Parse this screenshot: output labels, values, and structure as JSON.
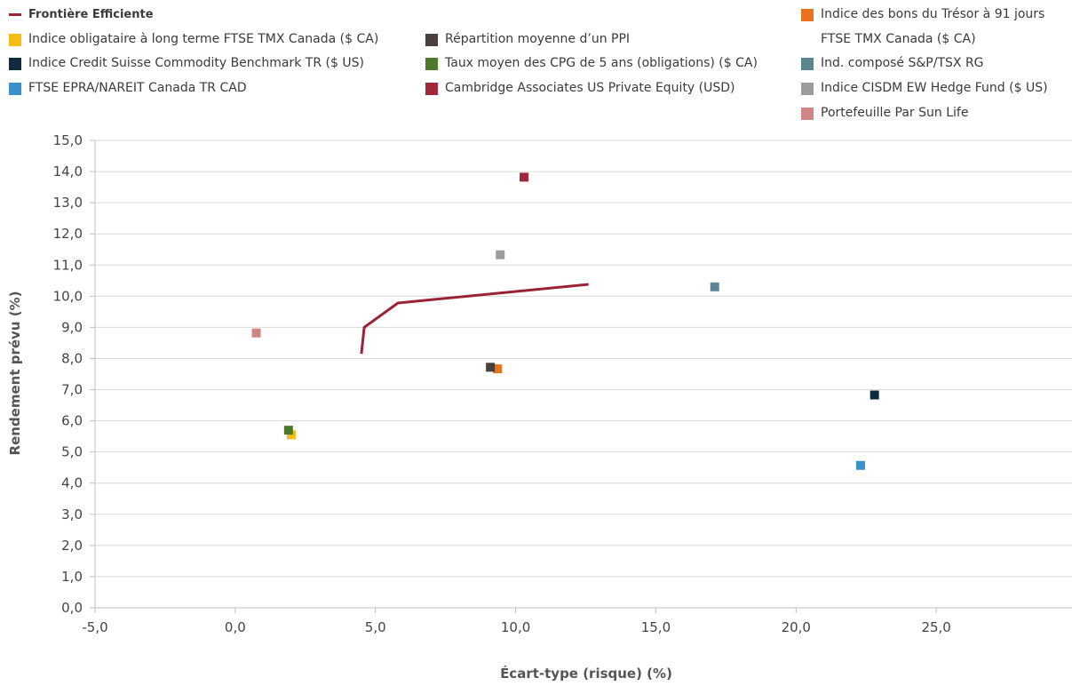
{
  "chart_data": {
    "type": "scatter",
    "xlabel": "Écart-type (risque) (%)",
    "ylabel": "Rendement prévu (%)",
    "xlim": [
      -5,
      30
    ],
    "ylim": [
      0,
      15
    ],
    "x_ticks": [
      "-5,0",
      "0,0",
      "5,0",
      "10,0",
      "15,0",
      "20,0",
      "25,0"
    ],
    "y_ticks": [
      "0,0",
      "1,0",
      "2,0",
      "3,0",
      "4,0",
      "5,0",
      "6,0",
      "7,0",
      "8,0",
      "9,0",
      "10,0",
      "11,0",
      "12,0",
      "13,0",
      "14,0",
      "15,0"
    ],
    "grid": "horizontal",
    "legend_position": "top",
    "frontier": {
      "name": "Frontière Efficiente",
      "color": "#9b2335",
      "points": [
        [
          4.5,
          8.15
        ],
        [
          4.6,
          9.0
        ],
        [
          5.8,
          9.78
        ],
        [
          12.6,
          10.38
        ]
      ]
    },
    "series": [
      {
        "name": "Indice des bons du Trésor à 91 jours",
        "name_line2": "FTSE TMX Canada ($ CA)",
        "color": "#e8731c",
        "x": 9.35,
        "y": 7.67
      },
      {
        "name": "Indice obligataire à long terme FTSE TMX Canada ($ CA)",
        "color": "#f6bd16",
        "x": 2.0,
        "y": 5.55
      },
      {
        "name": "Répartition moyenne d’un PPI",
        "color": "#4a403d",
        "x": 9.1,
        "y": 7.72
      },
      {
        "name": "Indice Credit Suisse Commodity Benchmark TR ($ US)",
        "color": "#0d2b3b",
        "x": 22.8,
        "y": 6.83
      },
      {
        "name": "Taux moyen des CPG de 5 ans (obligations) ($ CA)",
        "color": "#4a7a2a",
        "x": 1.9,
        "y": 5.7
      },
      {
        "name": "Ind. composé S&P/TSX RG",
        "color": "#5b8593",
        "x": 17.1,
        "y": 10.3
      },
      {
        "name": "FTSE EPRA/NAREIT Canada TR CAD",
        "color": "#3a91c9",
        "x": 22.3,
        "y": 4.57
      },
      {
        "name": "Cambridge Associates US Private Equity (USD)",
        "color": "#a1283a",
        "x": 10.3,
        "y": 13.82
      },
      {
        "name": "Indice CISDM EW Hedge Fund ($ US)",
        "color": "#9c9c9c",
        "x": 9.45,
        "y": 11.33
      },
      {
        "name": "Portefeuille Par Sun Life",
        "color": "#cf8584",
        "x": 0.75,
        "y": 8.82
      }
    ]
  }
}
